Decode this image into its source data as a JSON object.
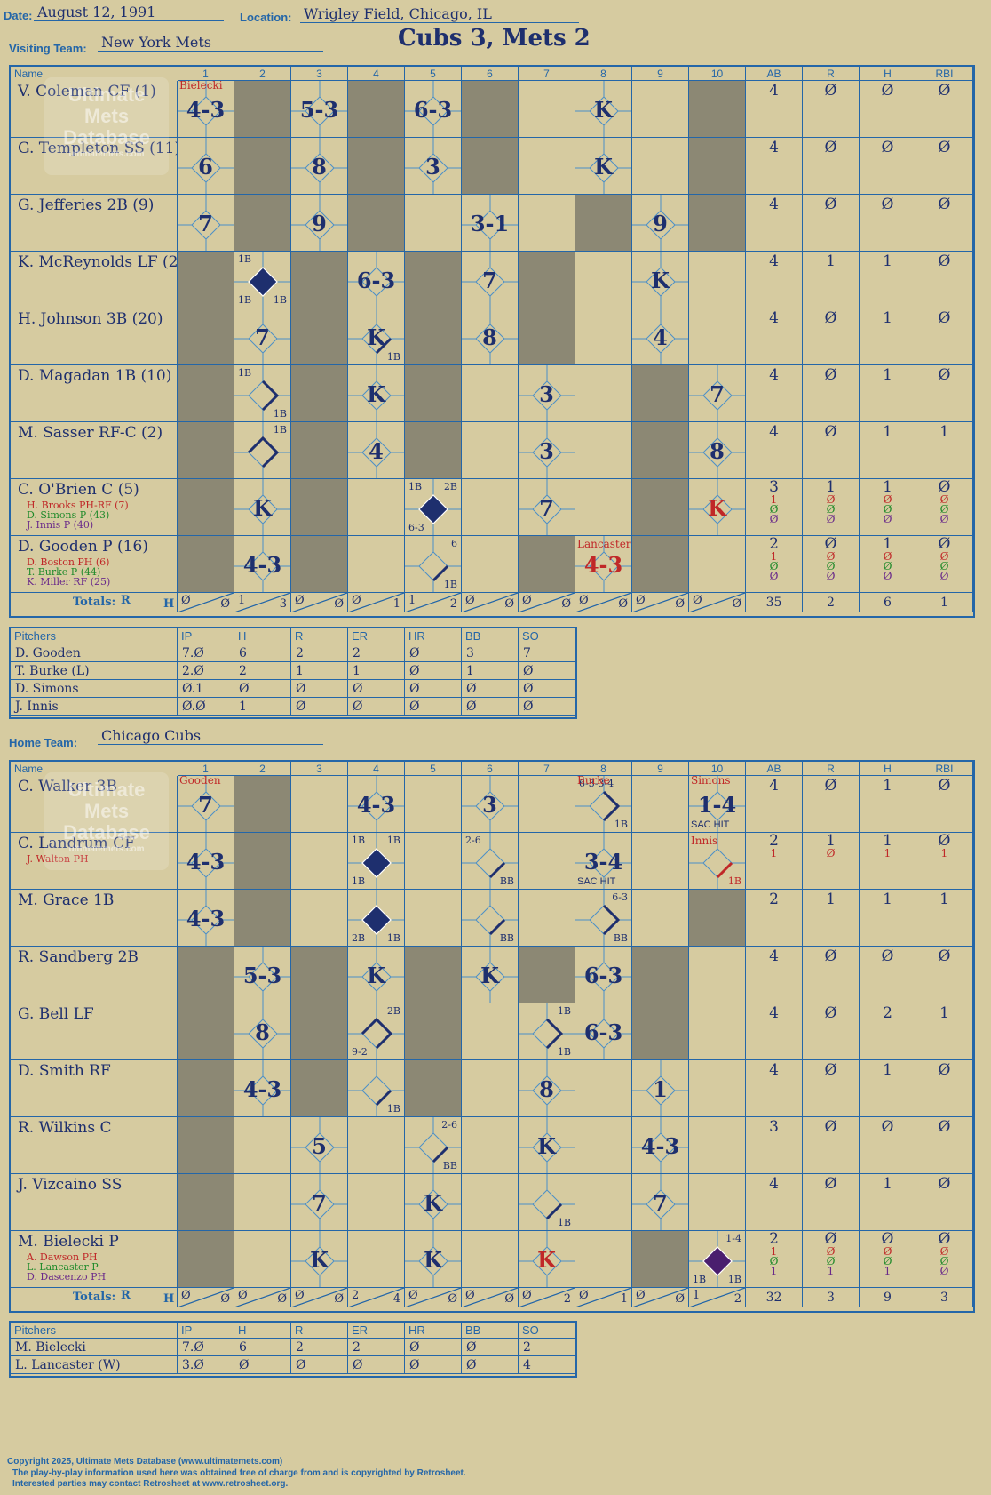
{
  "header": {
    "date_label": "Date:",
    "date": "August 12, 1991",
    "location_label": "Location:",
    "location": "Wrigley Field, Chicago, IL",
    "visiting_label": "Visiting Team:",
    "visiting_team": "New York Mets",
    "score_title": "Cubs 3, Mets 2",
    "home_label": "Home Team:",
    "home_team": "Chicago Cubs"
  },
  "watermark": {
    "line1": "Ultimate",
    "line2": "Mets",
    "line3": "Database",
    "url": "ultimatemets.com"
  },
  "columns": {
    "name": "Name",
    "innings": [
      "1",
      "2",
      "3",
      "4",
      "5",
      "6",
      "7",
      "8",
      "9",
      "10"
    ],
    "stats": [
      "AB",
      "R",
      "H",
      "RBI"
    ]
  },
  "totals_label": "Totals:",
  "r_label": "R",
  "h_label": "H",
  "pitcher_columns": [
    "Pitchers",
    "IP",
    "H",
    "R",
    "ER",
    "HR",
    "BB",
    "SO"
  ],
  "visitors": {
    "players": [
      {
        "name": "V. Coleman CF (1)",
        "subs": [],
        "stats": [
          [
            "4"
          ],
          [
            "Ø"
          ],
          [
            "Ø"
          ],
          [
            "Ø"
          ]
        ]
      },
      {
        "name": "G. Templeton SS (11)",
        "subs": [],
        "stats": [
          [
            "4"
          ],
          [
            "Ø"
          ],
          [
            "Ø"
          ],
          [
            "Ø"
          ]
        ]
      },
      {
        "name": "G. Jefferies 2B (9)",
        "subs": [],
        "stats": [
          [
            "4"
          ],
          [
            "Ø"
          ],
          [
            "Ø"
          ],
          [
            "Ø"
          ]
        ]
      },
      {
        "name": "K. McReynolds LF (22)",
        "subs": [],
        "stats": [
          [
            "4"
          ],
          [
            "1"
          ],
          [
            "1"
          ],
          [
            "Ø"
          ]
        ]
      },
      {
        "name": "H. Johnson 3B (20)",
        "subs": [],
        "stats": [
          [
            "4"
          ],
          [
            "Ø"
          ],
          [
            "1"
          ],
          [
            "Ø"
          ]
        ]
      },
      {
        "name": "D. Magadan 1B (10)",
        "subs": [],
        "stats": [
          [
            "4"
          ],
          [
            "Ø"
          ],
          [
            "1"
          ],
          [
            "Ø"
          ]
        ]
      },
      {
        "name": "M. Sasser RF-C (2)",
        "subs": [],
        "stats": [
          [
            "4"
          ],
          [
            "Ø"
          ],
          [
            "1"
          ],
          [
            "1"
          ]
        ]
      },
      {
        "name": "C. O'Brien C (5)",
        "subs": [
          {
            "text": "H. Brooks PH-RF (7)",
            "color": "#c02828"
          },
          {
            "text": "D. Simons P (43)",
            "color": "#1f8a2a"
          },
          {
            "text": "J. Innis P (40)",
            "color": "#6a2a8a"
          }
        ],
        "stats": [
          [
            "3",
            "1",
            "Ø",
            "Ø"
          ],
          [
            "1",
            "Ø",
            "Ø",
            "Ø"
          ],
          [
            "1",
            "Ø",
            "Ø",
            "Ø"
          ],
          [
            "Ø",
            "Ø",
            "Ø",
            "Ø"
          ]
        ]
      },
      {
        "name": "D. Gooden P (16)",
        "subs": [
          {
            "text": "D. Boston PH (6)",
            "color": "#c02828"
          },
          {
            "text": "T. Burke P (44)",
            "color": "#1f8a2a"
          },
          {
            "text": "K. Miller RF (25)",
            "color": "#6a2a8a"
          }
        ],
        "stats": [
          [
            "2",
            "1",
            "Ø",
            "Ø"
          ],
          [
            "Ø",
            "Ø",
            "Ø",
            "Ø"
          ],
          [
            "1",
            "Ø",
            "Ø",
            "Ø"
          ],
          [
            "Ø",
            "Ø",
            "Ø",
            "Ø"
          ]
        ]
      }
    ],
    "plays": [
      {
        "r": 0,
        "c": 0,
        "t": "4-3"
      },
      {
        "r": 0,
        "c": 2,
        "t": "5-3"
      },
      {
        "r": 0,
        "c": 4,
        "t": "6-3"
      },
      {
        "r": 0,
        "c": 7,
        "t": "K"
      },
      {
        "r": 1,
        "c": 0,
        "t": "6"
      },
      {
        "r": 1,
        "c": 2,
        "t": "8"
      },
      {
        "r": 1,
        "c": 4,
        "t": "3"
      },
      {
        "r": 1,
        "c": 7,
        "t": "K"
      },
      {
        "r": 2,
        "c": 0,
        "t": "7"
      },
      {
        "r": 2,
        "c": 2,
        "t": "9"
      },
      {
        "r": 2,
        "c": 5,
        "t": "3-1"
      },
      {
        "r": 2,
        "c": 8,
        "t": "9"
      },
      {
        "r": 3,
        "c": 1,
        "t": "",
        "run": true,
        "bl": "1B",
        "br": "1B",
        "tl": "1B"
      },
      {
        "r": 3,
        "c": 3,
        "t": "6-3"
      },
      {
        "r": 3,
        "c": 5,
        "t": "7"
      },
      {
        "r": 3,
        "c": 8,
        "t": "K"
      },
      {
        "r": 4,
        "c": 1,
        "t": "7"
      },
      {
        "r": 4,
        "c": 3,
        "t": "K",
        "br": "1B",
        "path": "first"
      },
      {
        "r": 4,
        "c": 5,
        "t": "8"
      },
      {
        "r": 4,
        "c": 8,
        "t": "4"
      },
      {
        "r": 5,
        "c": 1,
        "t": "",
        "tl": "1B",
        "br": "1B",
        "path": "second"
      },
      {
        "r": 5,
        "c": 3,
        "t": "K"
      },
      {
        "r": 5,
        "c": 6,
        "t": "3"
      },
      {
        "r": 5,
        "c": 9,
        "t": "7"
      },
      {
        "r": 6,
        "c": 1,
        "t": "",
        "tr": "1B",
        "path": "third"
      },
      {
        "r": 6,
        "c": 3,
        "t": "4"
      },
      {
        "r": 6,
        "c": 6,
        "t": "3"
      },
      {
        "r": 6,
        "c": 9,
        "t": "8"
      },
      {
        "r": 7,
        "c": 1,
        "t": "K"
      },
      {
        "r": 7,
        "c": 4,
        "t": "",
        "run": true,
        "tl": "1B",
        "tr": "2B",
        "bl": "6-3"
      },
      {
        "r": 7,
        "c": 6,
        "t": "7"
      },
      {
        "r": 7,
        "c": 9,
        "t": "K",
        "red": true
      },
      {
        "r": 8,
        "c": 1,
        "t": "4-3"
      },
      {
        "r": 8,
        "c": 4,
        "t": "",
        "tr": "6",
        "br": "1B",
        "path": "first"
      },
      {
        "r": 8,
        "c": 7,
        "t": "4-3",
        "red": true,
        "note": "Lancaster"
      }
    ],
    "top_note": {
      "c": 0,
      "t": "Bielecki"
    },
    "dark_start": [
      1,
      1,
      1,
      0,
      0,
      0,
      0,
      0,
      0
    ],
    "totals": [
      [
        "Ø",
        "Ø"
      ],
      [
        "1",
        "3"
      ],
      [
        "Ø",
        "Ø"
      ],
      [
        "Ø",
        "1"
      ],
      [
        "1",
        "2"
      ],
      [
        "Ø",
        "Ø"
      ],
      [
        "Ø",
        "Ø"
      ],
      [
        "Ø",
        "Ø"
      ],
      [
        "Ø",
        "Ø"
      ],
      [
        "Ø",
        "Ø"
      ]
    ],
    "stat_totals": [
      "35",
      "2",
      "6",
      "1"
    ],
    "pitchers": [
      [
        "D. Gooden",
        "7.Ø",
        "6",
        "2",
        "2",
        "Ø",
        "3",
        "7"
      ],
      [
        "T. Burke (L)",
        "2.Ø",
        "2",
        "1",
        "1",
        "Ø",
        "1",
        "Ø"
      ],
      [
        "D. Simons",
        "Ø.1",
        "Ø",
        "Ø",
        "Ø",
        "Ø",
        "Ø",
        "Ø"
      ],
      [
        "J. Innis",
        "Ø.Ø",
        "1",
        "Ø",
        "Ø",
        "Ø",
        "Ø",
        "Ø"
      ]
    ]
  },
  "home": {
    "players": [
      {
        "name": "C. Walker 3B",
        "subs": [],
        "stats": [
          [
            "4"
          ],
          [
            "Ø"
          ],
          [
            "1"
          ],
          [
            "Ø"
          ]
        ]
      },
      {
        "name": "C. Landrum CF",
        "subs": [
          {
            "text": "J. Walton PH",
            "color": "#c02828"
          }
        ],
        "stats": [
          [
            "2",
            "1"
          ],
          [
            "1",
            "Ø"
          ],
          [
            "1",
            "1"
          ],
          [
            "Ø",
            "1"
          ]
        ]
      },
      {
        "name": "M. Grace 1B",
        "subs": [],
        "stats": [
          [
            "2"
          ],
          [
            "1"
          ],
          [
            "1"
          ],
          [
            "1"
          ]
        ]
      },
      {
        "name": "R. Sandberg 2B",
        "subs": [],
        "stats": [
          [
            "4"
          ],
          [
            "Ø"
          ],
          [
            "Ø"
          ],
          [
            "Ø"
          ]
        ]
      },
      {
        "name": "G. Bell LF",
        "subs": [],
        "stats": [
          [
            "4"
          ],
          [
            "Ø"
          ],
          [
            "2"
          ],
          [
            "1"
          ]
        ]
      },
      {
        "name": "D. Smith RF",
        "subs": [],
        "stats": [
          [
            "4"
          ],
          [
            "Ø"
          ],
          [
            "1"
          ],
          [
            "Ø"
          ]
        ]
      },
      {
        "name": "R. Wilkins C",
        "subs": [],
        "stats": [
          [
            "3"
          ],
          [
            "Ø"
          ],
          [
            "Ø"
          ],
          [
            "Ø"
          ]
        ]
      },
      {
        "name": "J. Vizcaino SS",
        "subs": [],
        "stats": [
          [
            "4"
          ],
          [
            "Ø"
          ],
          [
            "1"
          ],
          [
            "Ø"
          ]
        ]
      },
      {
        "name": "M. Bielecki P",
        "subs": [
          {
            "text": "A. Dawson PH",
            "color": "#c02828"
          },
          {
            "text": "L. Lancaster P",
            "color": "#1f8a2a"
          },
          {
            "text": "D. Dascenzo PH",
            "color": "#6a2a8a"
          }
        ],
        "stats": [
          [
            "2",
            "1",
            "Ø",
            "1"
          ],
          [
            "Ø",
            "Ø",
            "Ø",
            "1"
          ],
          [
            "Ø",
            "Ø",
            "Ø",
            "1"
          ],
          [
            "Ø",
            "Ø",
            "Ø",
            "Ø"
          ]
        ]
      }
    ],
    "plays": [
      {
        "r": 0,
        "c": 0,
        "t": "7"
      },
      {
        "r": 0,
        "c": 3,
        "t": "4-3"
      },
      {
        "r": 0,
        "c": 5,
        "t": "3"
      },
      {
        "r": 0,
        "c": 7,
        "t": "",
        "tl": "6-3-3-4",
        "br": "1B",
        "path": "second"
      },
      {
        "r": 0,
        "c": 9,
        "t": "1-4",
        "sac": "SAC HIT"
      },
      {
        "r": 1,
        "c": 0,
        "t": "4-3"
      },
      {
        "r": 1,
        "c": 3,
        "t": "",
        "run": true,
        "tl": "1B",
        "tr": "1B",
        "bl": "1B"
      },
      {
        "r": 1,
        "c": 5,
        "t": "",
        "tl": "2-6",
        "br": "BB",
        "path": "first"
      },
      {
        "r": 1,
        "c": 7,
        "t": "3-4",
        "sac": "SAC HIT"
      },
      {
        "r": 1,
        "c": 9,
        "t": "",
        "br": "1B",
        "path": "first",
        "red": true
      },
      {
        "r": 2,
        "c": 0,
        "t": "4-3"
      },
      {
        "r": 2,
        "c": 3,
        "t": "",
        "run": true,
        "bl": "2B",
        "br": "1B"
      },
      {
        "r": 2,
        "c": 5,
        "t": "",
        "br": "BB",
        "path": "first"
      },
      {
        "r": 2,
        "c": 7,
        "t": "",
        "tr": "6-3",
        "br": "BB",
        "path": "second"
      },
      {
        "r": 3,
        "c": 1,
        "t": "5-3"
      },
      {
        "r": 3,
        "c": 3,
        "t": "K"
      },
      {
        "r": 3,
        "c": 5,
        "t": "K"
      },
      {
        "r": 3,
        "c": 7,
        "t": "6-3"
      },
      {
        "r": 4,
        "c": 1,
        "t": "8"
      },
      {
        "r": 4,
        "c": 3,
        "t": "",
        "tr": "2B",
        "bl": "9-2",
        "path": "third"
      },
      {
        "r": 4,
        "c": 6,
        "t": "",
        "tr": "1B",
        "br": "1B",
        "path": "second"
      },
      {
        "r": 4,
        "c": 7,
        "t": "6-3"
      },
      {
        "r": 5,
        "c": 1,
        "t": "4-3"
      },
      {
        "r": 5,
        "c": 3,
        "t": "",
        "br": "1B",
        "path": "first"
      },
      {
        "r": 5,
        "c": 6,
        "t": "8"
      },
      {
        "r": 5,
        "c": 8,
        "t": "1"
      },
      {
        "r": 6,
        "c": 2,
        "t": "5"
      },
      {
        "r": 6,
        "c": 4,
        "t": "",
        "tr": "2-6",
        "br": "BB",
        "path": "first"
      },
      {
        "r": 6,
        "c": 6,
        "t": "K"
      },
      {
        "r": 6,
        "c": 8,
        "t": "4-3"
      },
      {
        "r": 7,
        "c": 2,
        "t": "7"
      },
      {
        "r": 7,
        "c": 4,
        "t": "K"
      },
      {
        "r": 7,
        "c": 6,
        "t": "",
        "br": "1B",
        "path": "first"
      },
      {
        "r": 7,
        "c": 8,
        "t": "7"
      },
      {
        "r": 8,
        "c": 2,
        "t": "K"
      },
      {
        "r": 8,
        "c": 4,
        "t": "K"
      },
      {
        "r": 8,
        "c": 6,
        "t": "K",
        "red": true
      },
      {
        "r": 8,
        "c": 9,
        "t": "",
        "run": true,
        "purple": true,
        "tr": "1-4",
        "bl": "1B",
        "br": "1B"
      }
    ],
    "top_notes": [
      {
        "c": 0,
        "t": "Gooden"
      },
      {
        "c": 7,
        "t": "Burke"
      },
      {
        "c": 9,
        "t": "Simons"
      }
    ],
    "mid_notes": [
      {
        "r": 1,
        "c": 9,
        "t": "Innis"
      }
    ],
    "dark_start": [
      1,
      1,
      1,
      0,
      0,
      0,
      0,
      0,
      0
    ],
    "totals": [
      [
        "Ø",
        "Ø"
      ],
      [
        "Ø",
        "Ø"
      ],
      [
        "Ø",
        "Ø"
      ],
      [
        "2",
        "4"
      ],
      [
        "Ø",
        "Ø"
      ],
      [
        "Ø",
        "Ø"
      ],
      [
        "Ø",
        "2"
      ],
      [
        "Ø",
        "1"
      ],
      [
        "Ø",
        "Ø"
      ],
      [
        "1",
        "2"
      ]
    ],
    "stat_totals": [
      "32",
      "3",
      "9",
      "3"
    ],
    "pitchers": [
      [
        "M. Bielecki",
        "7.Ø",
        "6",
        "2",
        "2",
        "Ø",
        "Ø",
        "2"
      ],
      [
        "L. Lancaster (W)",
        "3.Ø",
        "Ø",
        "Ø",
        "Ø",
        "Ø",
        "Ø",
        "4"
      ]
    ]
  },
  "footer": {
    "line1": "Copyright 2025, Ultimate Mets Database (www.ultimatemets.com)",
    "line2": "The play-by-play information used here was obtained free of charge from and is copyrighted by Retrosheet.",
    "line3": "Interested parties may contact Retrosheet at www.retrosheet.org."
  }
}
